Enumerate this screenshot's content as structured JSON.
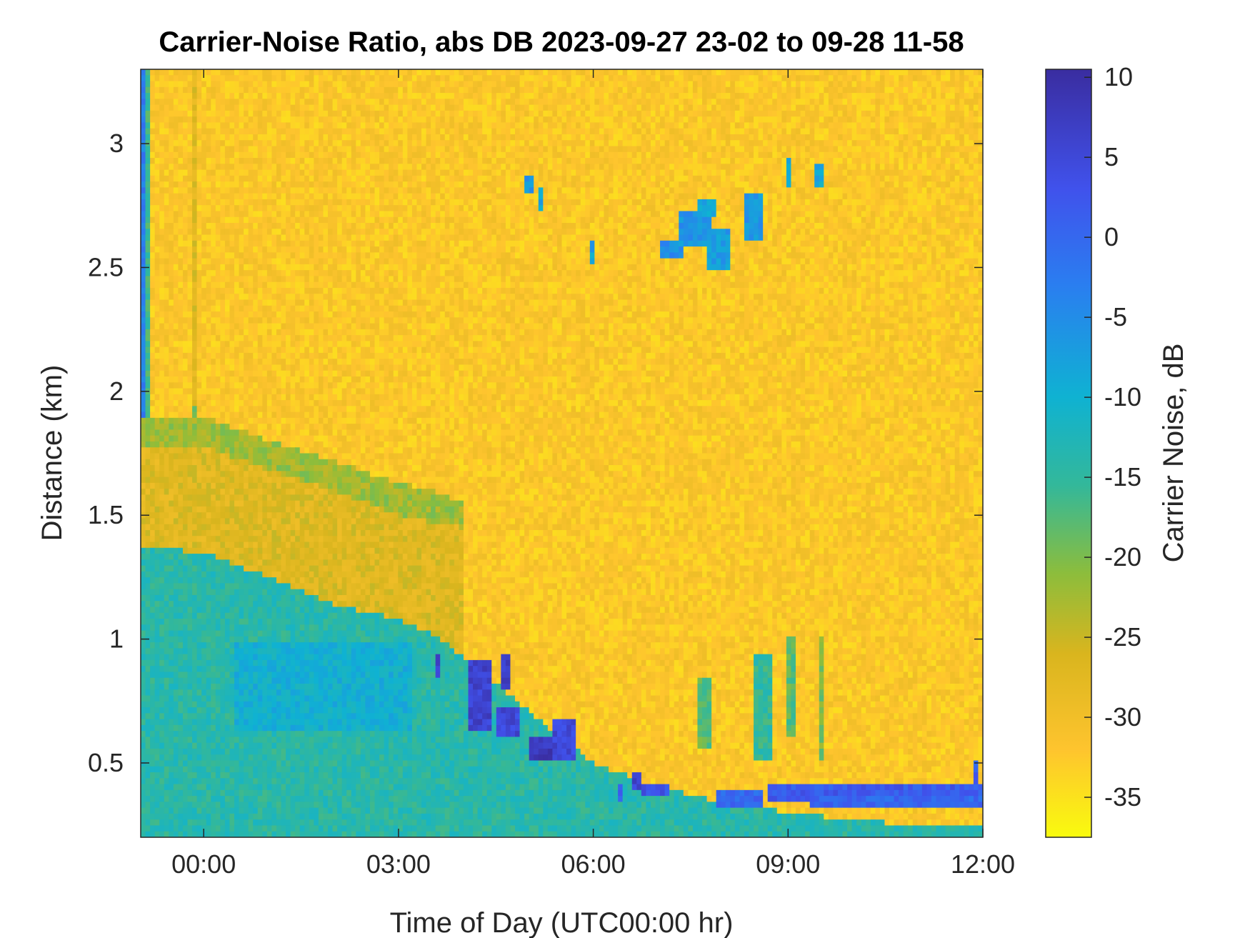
{
  "chart_data": {
    "type": "heatmap",
    "title": "Carrier-Noise Ratio, abs DB 2023-09-27 23-02 to 09-28 11-58",
    "xlabel": "Time of Day (UTC00:00 hr)",
    "ylabel": "Distance (km)",
    "colorbar_label": "Carrier Noise, dB",
    "x_unit": "hours after 00:00 UTC",
    "xlim": [
      -0.97,
      12.0
    ],
    "ylim": [
      0.2,
      3.3
    ],
    "clim": [
      -37.5,
      10.5
    ],
    "x_ticks": [
      {
        "value": 0,
        "label": "00:00"
      },
      {
        "value": 3,
        "label": "03:00"
      },
      {
        "value": 6,
        "label": "06:00"
      },
      {
        "value": 9,
        "label": "09:00"
      },
      {
        "value": 12,
        "label": "12:00"
      }
    ],
    "y_ticks": [
      {
        "value": 0.5,
        "label": "0.5"
      },
      {
        "value": 1,
        "label": "1"
      },
      {
        "value": 1.5,
        "label": "1.5"
      },
      {
        "value": 2,
        "label": "2"
      },
      {
        "value": 2.5,
        "label": "2.5"
      },
      {
        "value": 3,
        "label": "3"
      }
    ],
    "colorbar_ticks": [
      {
        "value": 10,
        "label": "10"
      },
      {
        "value": 5,
        "label": "5"
      },
      {
        "value": 0,
        "label": "0"
      },
      {
        "value": -5,
        "label": "-5"
      },
      {
        "value": -10,
        "label": "-10"
      },
      {
        "value": -15,
        "label": "-15"
      },
      {
        "value": -20,
        "label": "-20"
      },
      {
        "value": -25,
        "label": "-25"
      },
      {
        "value": -30,
        "label": "-30"
      },
      {
        "value": -35,
        "label": "-35"
      }
    ],
    "colormap": [
      {
        "value": -37.5,
        "color": "#f9fb0e"
      },
      {
        "value": -32.0,
        "color": "#fec42e"
      },
      {
        "value": -26.0,
        "color": "#d9b51e"
      },
      {
        "value": -21.0,
        "color": "#8cbd3c"
      },
      {
        "value": -15.5,
        "color": "#33b89a"
      },
      {
        "value": -10.0,
        "color": "#0fb2d2"
      },
      {
        "value": -3.0,
        "color": "#2a7ef0"
      },
      {
        "value": 3.0,
        "color": "#4052ec"
      },
      {
        "value": 10.5,
        "color": "#3a2da0"
      }
    ],
    "background_level_db": -32,
    "regions": [
      {
        "kind": "band",
        "x": [
          -0.97,
          12.0
        ],
        "y": [
          0.2,
          0.22
        ],
        "db": -24
      },
      {
        "kind": "column",
        "x": [
          -0.97,
          -0.9
        ],
        "y": [
          0.2,
          3.3
        ],
        "db": -3
      },
      {
        "kind": "column",
        "x": [
          -0.88,
          -0.82
        ],
        "y": [
          0.2,
          3.3
        ],
        "db": -16
      },
      {
        "kind": "column",
        "x": [
          -0.16,
          -0.1
        ],
        "y": [
          0.2,
          1.95
        ],
        "db": -18
      },
      {
        "kind": "column",
        "x": [
          -0.16,
          -0.1
        ],
        "y": [
          1.95,
          3.3
        ],
        "db": -27
      },
      {
        "kind": "boundary_layer",
        "db": -14,
        "top": [
          [
            -0.9,
            1.37
          ],
          [
            0.0,
            1.35
          ],
          [
            1.0,
            1.25
          ],
          [
            2.0,
            1.14
          ],
          [
            3.0,
            1.08
          ],
          [
            3.5,
            1.02
          ],
          [
            4.0,
            0.93
          ],
          [
            4.5,
            0.82
          ],
          [
            5.0,
            0.71
          ],
          [
            5.5,
            0.6
          ],
          [
            6.0,
            0.5
          ],
          [
            6.5,
            0.45
          ],
          [
            7.0,
            0.4
          ],
          [
            8.0,
            0.34
          ],
          [
            9.0,
            0.3
          ],
          [
            10.0,
            0.27
          ],
          [
            11.0,
            0.25
          ],
          [
            12.0,
            0.25
          ]
        ]
      },
      {
        "kind": "blob",
        "x": [
          0.5,
          3.2
        ],
        "y": [
          0.62,
          0.98
        ],
        "db": -10
      },
      {
        "kind": "residual_layer",
        "db": -22,
        "top": [
          [
            -0.9,
            1.89
          ],
          [
            0.0,
            1.9
          ],
          [
            1.0,
            1.8
          ],
          [
            2.0,
            1.72
          ],
          [
            3.0,
            1.63
          ],
          [
            3.5,
            1.6
          ],
          [
            4.0,
            1.55
          ]
        ],
        "bottom": [
          [
            -0.9,
            1.78
          ],
          [
            0.0,
            1.78
          ],
          [
            1.0,
            1.68
          ],
          [
            2.0,
            1.6
          ],
          [
            3.0,
            1.5
          ],
          [
            3.5,
            1.47
          ],
          [
            4.0,
            1.45
          ]
        ]
      },
      {
        "kind": "sublayer",
        "db": -27,
        "top": [
          [
            -0.9,
            1.78
          ],
          [
            0.0,
            1.78
          ],
          [
            1.0,
            1.68
          ],
          [
            2.0,
            1.6
          ],
          [
            3.0,
            1.5
          ],
          [
            3.5,
            1.47
          ],
          [
            4.0,
            1.45
          ]
        ],
        "bottom": [
          [
            -0.9,
            1.37
          ],
          [
            0.0,
            1.35
          ],
          [
            1.0,
            1.25
          ],
          [
            2.0,
            1.14
          ],
          [
            3.0,
            1.08
          ],
          [
            3.5,
            1.02
          ],
          [
            4.0,
            0.93
          ]
        ]
      },
      {
        "kind": "blob",
        "x": [
          3.55,
          3.62
        ],
        "y": [
          0.85,
          0.93
        ],
        "db": 5
      },
      {
        "kind": "blob",
        "x": [
          4.1,
          4.4
        ],
        "y": [
          0.62,
          0.92
        ],
        "db": 6
      },
      {
        "kind": "blob",
        "x": [
          4.6,
          4.75
        ],
        "y": [
          0.8,
          0.95
        ],
        "db": 7
      },
      {
        "kind": "blob",
        "x": [
          4.5,
          4.9
        ],
        "y": [
          0.6,
          0.72
        ],
        "db": 5
      },
      {
        "kind": "blob",
        "x": [
          5.0,
          5.4
        ],
        "y": [
          0.52,
          0.6
        ],
        "db": 8
      },
      {
        "kind": "blob",
        "x": [
          5.4,
          5.75
        ],
        "y": [
          0.5,
          0.68
        ],
        "db": 5
      },
      {
        "kind": "blob",
        "x": [
          6.6,
          6.75
        ],
        "y": [
          0.38,
          0.46
        ],
        "db": 6
      },
      {
        "kind": "blob",
        "x": [
          6.75,
          7.2
        ],
        "y": [
          0.36,
          0.42
        ],
        "db": 3
      },
      {
        "kind": "column",
        "x": [
          6.35,
          6.42
        ],
        "y": [
          0.35,
          0.42
        ],
        "db": 2
      },
      {
        "kind": "precip",
        "x": [
          7.6,
          7.8
        ],
        "y": [
          0.55,
          0.85
        ],
        "db": -18
      },
      {
        "kind": "precip",
        "x": [
          8.5,
          8.75
        ],
        "y": [
          0.5,
          0.95
        ],
        "db": -15
      },
      {
        "kind": "precip",
        "x": [
          9.0,
          9.1
        ],
        "y": [
          0.6,
          1.0
        ],
        "db": -18
      },
      {
        "kind": "precip",
        "x": [
          9.5,
          9.55
        ],
        "y": [
          0.5,
          1.0
        ],
        "db": -20
      },
      {
        "kind": "band",
        "x": [
          7.9,
          8.6
        ],
        "y": [
          0.33,
          0.38
        ],
        "db": 0
      },
      {
        "kind": "band",
        "x": [
          8.7,
          12.0
        ],
        "y": [
          0.34,
          0.41
        ],
        "db": 2
      },
      {
        "kind": "band",
        "x": [
          9.3,
          12.0
        ],
        "y": [
          0.32,
          0.36
        ],
        "db": 0
      },
      {
        "kind": "column",
        "x": [
          11.85,
          11.95
        ],
        "y": [
          0.38,
          0.52
        ],
        "db": 1
      },
      {
        "kind": "blob",
        "x": [
          4.95,
          5.1
        ],
        "y": [
          2.8,
          2.88
        ],
        "db": -6
      },
      {
        "kind": "blob",
        "x": [
          5.15,
          5.25
        ],
        "y": [
          2.72,
          2.82
        ],
        "db": -8
      },
      {
        "kind": "blob",
        "x": [
          5.95,
          6.0
        ],
        "y": [
          2.52,
          2.6
        ],
        "db": -8
      },
      {
        "kind": "blob",
        "x": [
          7.0,
          7.4
        ],
        "y": [
          2.53,
          2.6
        ],
        "db": -5
      },
      {
        "kind": "blob",
        "x": [
          7.3,
          7.85
        ],
        "y": [
          2.58,
          2.72
        ],
        "db": -6
      },
      {
        "kind": "blob",
        "x": [
          7.6,
          7.9
        ],
        "y": [
          2.7,
          2.78
        ],
        "db": -8
      },
      {
        "kind": "blob",
        "x": [
          7.75,
          8.1
        ],
        "y": [
          2.5,
          2.65
        ],
        "db": -7
      },
      {
        "kind": "blob",
        "x": [
          8.35,
          8.6
        ],
        "y": [
          2.62,
          2.8
        ],
        "db": -6
      },
      {
        "kind": "blob",
        "x": [
          8.95,
          9.05
        ],
        "y": [
          2.82,
          2.95
        ],
        "db": -8
      },
      {
        "kind": "blob",
        "x": [
          9.4,
          9.52
        ],
        "y": [
          2.83,
          2.93
        ],
        "db": -9
      }
    ]
  }
}
